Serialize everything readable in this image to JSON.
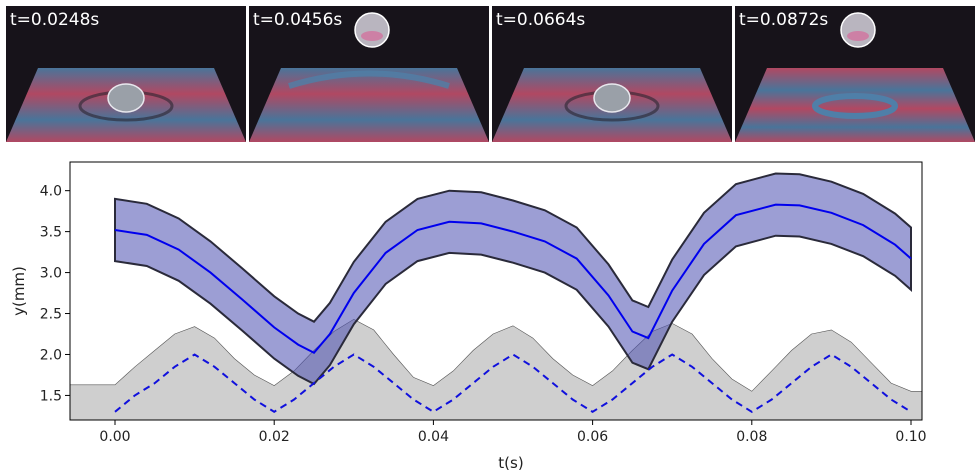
{
  "photos": [
    {
      "time_label": "t=0.0248s",
      "drop_in_air": false,
      "pattern": "bowl"
    },
    {
      "time_label": "t=0.0456s",
      "drop_in_air": true,
      "pattern": "waves"
    },
    {
      "time_label": "t=0.0664s",
      "drop_in_air": false,
      "pattern": "bowl"
    },
    {
      "time_label": "t=0.0872s",
      "drop_in_air": true,
      "pattern": "rings"
    }
  ],
  "colors": {
    "photo_bg": "#17131a",
    "surface_red": "#c24e6a",
    "surface_blue": "#4f7fa8",
    "trajectory_line": "#0000ee",
    "trajectory_band": "#4b4fb0",
    "bath_fill": "#cfcfcf",
    "bath_dashed": "#1010dd"
  },
  "chart_data": {
    "type": "line",
    "title": "",
    "xlabel": "t(s)",
    "ylabel": "y(mm)",
    "xlim": [
      0.0,
      0.1
    ],
    "ylim": [
      1.2,
      4.35
    ],
    "xticks": [
      "0.00",
      "0.02",
      "0.04",
      "0.06",
      "0.08",
      "0.10"
    ],
    "yticks": [
      "1.5",
      "2.0",
      "2.5",
      "3.0",
      "3.5",
      "4.0"
    ],
    "grid": false,
    "series": [
      {
        "style": "solid",
        "x": [
          0.0,
          0.004,
          0.008,
          0.012,
          0.016,
          0.02,
          0.023,
          0.025,
          0.027,
          0.03,
          0.034,
          0.038,
          0.042,
          0.046,
          0.05,
          0.054,
          0.058,
          0.062,
          0.065,
          0.067,
          0.07,
          0.074,
          0.078,
          0.083,
          0.086,
          0.09,
          0.094,
          0.098,
          0.1
        ],
        "y": [
          3.52,
          3.46,
          3.28,
          3.0,
          2.67,
          2.33,
          2.12,
          2.02,
          2.25,
          2.75,
          3.24,
          3.52,
          3.62,
          3.6,
          3.5,
          3.38,
          3.17,
          2.72,
          2.28,
          2.2,
          2.78,
          3.35,
          3.7,
          3.83,
          3.82,
          3.73,
          3.58,
          3.34,
          3.17
        ],
        "band_halfwidth": 0.38
      },
      {
        "style": "dashed",
        "x": [
          0.0,
          0.0025,
          0.005,
          0.0075,
          0.01,
          0.0125,
          0.015,
          0.0175,
          0.02,
          0.0225,
          0.025,
          0.0275,
          0.03,
          0.0325,
          0.035,
          0.0375,
          0.04,
          0.0425,
          0.045,
          0.0475,
          0.05,
          0.0525,
          0.055,
          0.0575,
          0.06,
          0.0625,
          0.065,
          0.0675,
          0.07,
          0.0725,
          0.075,
          0.0775,
          0.08,
          0.0825,
          0.085,
          0.0875,
          0.09,
          0.0925,
          0.095,
          0.0975,
          0.1
        ],
        "y": [
          1.3,
          1.5,
          1.65,
          1.85,
          2.0,
          1.85,
          1.65,
          1.45,
          1.3,
          1.45,
          1.65,
          1.85,
          2.0,
          1.85,
          1.65,
          1.45,
          1.3,
          1.45,
          1.65,
          1.85,
          2.0,
          1.85,
          1.65,
          1.45,
          1.3,
          1.45,
          1.65,
          1.85,
          2.0,
          1.85,
          1.65,
          1.45,
          1.3,
          1.45,
          1.65,
          1.85,
          2.0,
          1.85,
          1.65,
          1.45,
          1.3
        ]
      },
      {
        "style": "filled",
        "x": [
          0.0,
          0.0025,
          0.005,
          0.0075,
          0.01,
          0.0125,
          0.015,
          0.0175,
          0.02,
          0.0225,
          0.025,
          0.0275,
          0.03,
          0.0325,
          0.035,
          0.0375,
          0.04,
          0.0425,
          0.045,
          0.0475,
          0.05,
          0.0525,
          0.055,
          0.0575,
          0.06,
          0.0625,
          0.065,
          0.0675,
          0.07,
          0.0725,
          0.075,
          0.0775,
          0.08,
          0.0825,
          0.085,
          0.0875,
          0.09,
          0.0925,
          0.095,
          0.0975,
          0.1
        ],
        "y": [
          1.63,
          1.85,
          2.05,
          2.25,
          2.34,
          2.2,
          1.95,
          1.75,
          1.62,
          1.8,
          2.05,
          2.28,
          2.43,
          2.3,
          2.0,
          1.72,
          1.62,
          1.8,
          2.05,
          2.25,
          2.35,
          2.2,
          1.95,
          1.75,
          1.62,
          1.8,
          2.05,
          2.28,
          2.38,
          2.25,
          1.95,
          1.7,
          1.55,
          1.8,
          2.05,
          2.25,
          2.3,
          2.15,
          1.9,
          1.65,
          1.55
        ]
      }
    ]
  }
}
